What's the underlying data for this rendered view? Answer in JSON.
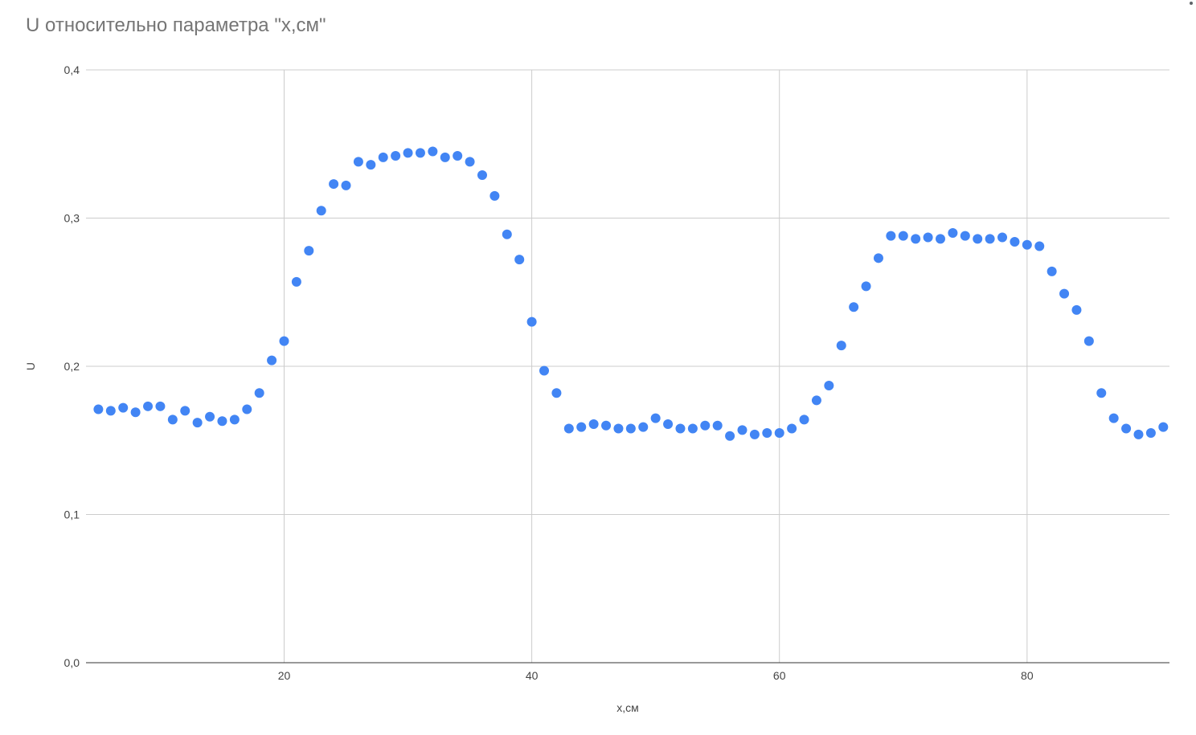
{
  "chart_data": {
    "type": "scatter",
    "title": "U относительно параметра \"x,см\"",
    "xlabel": "x,см",
    "ylabel": "U",
    "xlim": [
      4,
      91.5
    ],
    "ylim": [
      0,
      0.4
    ],
    "x_ticks": [
      20,
      40,
      60,
      80
    ],
    "x_tick_labels": [
      "20",
      "40",
      "60",
      "80"
    ],
    "y_ticks": [
      0,
      0.1,
      0.2,
      0.3,
      0.4
    ],
    "y_tick_labels": [
      "0,0",
      "0,1",
      "0,2",
      "0,3",
      "0,4"
    ],
    "grid": true,
    "legend": "none",
    "color": "#4285f4",
    "series": [
      {
        "x": [
          5,
          6,
          7,
          8,
          9,
          10,
          11,
          12,
          13,
          14,
          15,
          16,
          17,
          18,
          19,
          20,
          21,
          22,
          23,
          24,
          25,
          26,
          27,
          28,
          29,
          30,
          31,
          32,
          33,
          34,
          35,
          36,
          37,
          38,
          39,
          40,
          41,
          42,
          43,
          44,
          45,
          46,
          47,
          48,
          49,
          50,
          51,
          52,
          53,
          54,
          55,
          56,
          57,
          58,
          59,
          60,
          61,
          62,
          63,
          64,
          65,
          66,
          67,
          68,
          69,
          70,
          71,
          72,
          73,
          74,
          75,
          76,
          77,
          78,
          79,
          80,
          81,
          82,
          83,
          84,
          85,
          86,
          87,
          88,
          89,
          90,
          91
        ],
        "y": [
          0.171,
          0.17,
          0.172,
          0.169,
          0.173,
          0.173,
          0.164,
          0.17,
          0.162,
          0.166,
          0.163,
          0.164,
          0.171,
          0.182,
          0.204,
          0.217,
          0.257,
          0.278,
          0.305,
          0.323,
          0.322,
          0.338,
          0.336,
          0.341,
          0.342,
          0.344,
          0.344,
          0.345,
          0.341,
          0.342,
          0.338,
          0.329,
          0.315,
          0.289,
          0.272,
          0.23,
          0.197,
          0.182,
          0.158,
          0.159,
          0.161,
          0.16,
          0.158,
          0.158,
          0.159,
          0.165,
          0.161,
          0.158,
          0.158,
          0.16,
          0.16,
          0.153,
          0.157,
          0.154,
          0.155,
          0.155,
          0.158,
          0.164,
          0.177,
          0.187,
          0.214,
          0.24,
          0.254,
          0.273,
          0.288,
          0.288,
          0.286,
          0.287,
          0.286,
          0.29,
          0.288,
          0.286,
          0.286,
          0.287,
          0.284,
          0.282,
          0.281,
          0.264,
          0.249,
          0.238,
          0.217,
          0.182,
          0.165,
          0.158,
          0.154,
          0.155,
          0.159
        ]
      }
    ]
  },
  "ui": {
    "menu_icon": "more-vert-icon"
  }
}
